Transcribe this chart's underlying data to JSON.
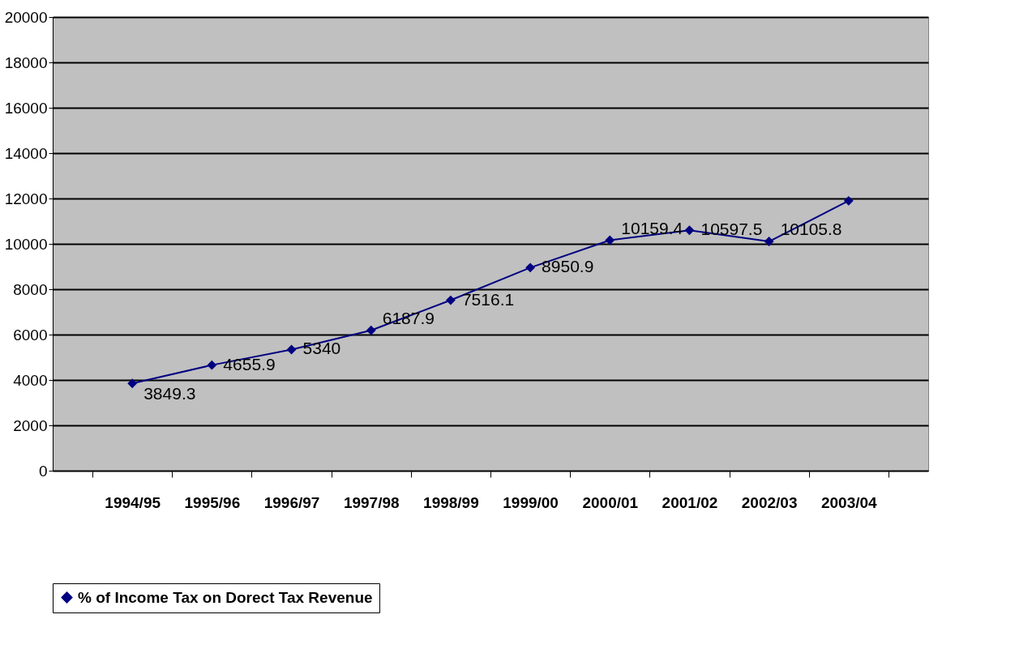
{
  "chart_data": {
    "type": "line",
    "categories": [
      "1994/95",
      "1995/96",
      "1996/97",
      "1997/98",
      "1998/99",
      "1999/00",
      "2000/01",
      "2001/02",
      "2002/03",
      "2003/04"
    ],
    "series": [
      {
        "name": "% of Income Tax on Dorect Tax Revenue",
        "color": "#000080",
        "values": [
          3849.3,
          4655.9,
          5340,
          6187.9,
          7516.1,
          8950.9,
          10159.4,
          10597.5,
          10105.8,
          11900
        ],
        "value_labels": [
          "3849.3",
          "4655.9",
          "5340",
          "6187.9",
          "7516.1",
          "8950.9",
          "10159.4",
          "10597.5",
          "10105.8",
          null
        ]
      }
    ],
    "ylim": [
      0,
      20000
    ],
    "yticks": [
      0,
      2000,
      4000,
      6000,
      8000,
      10000,
      12000,
      14000,
      16000,
      18000,
      20000
    ],
    "grid": "y",
    "legend": "bottom",
    "marker": "diamond",
    "line_style": "solid"
  }
}
